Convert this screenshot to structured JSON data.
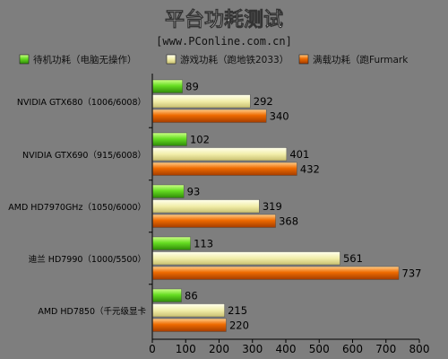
{
  "chart_data": {
    "type": "bar",
    "orientation": "horizontal",
    "title": "平台功耗测试",
    "subtitle": "[www.PConline.com.cn]",
    "categories": [
      "NVIDIA GTX680（1006/6008）",
      "NVIDIA GTX690（915/6008）",
      "AMD HD7970GHz（1050/6000）",
      "迪兰 HD7990（1000/5500）",
      "AMD HD7850（千元级显卡"
    ],
    "series": [
      {
        "name": "待机功耗（电脑无操作）",
        "values": [
          89,
          102,
          93,
          113,
          86
        ],
        "color": "#66dd22"
      },
      {
        "name": "游戏功耗（跑地铁2033）",
        "values": [
          292,
          401,
          319,
          561,
          215
        ],
        "color": "#f2eeaa"
      },
      {
        "name": "满载功耗（跑Furmark",
        "values": [
          340,
          432,
          368,
          737,
          220
        ],
        "color": "#ee6a00"
      }
    ],
    "xlim": [
      0,
      800
    ],
    "xticks": [
      0,
      100,
      200,
      300,
      400,
      500,
      600,
      700,
      800
    ],
    "grid": false,
    "legend_position": "top"
  },
  "colors": {
    "background": "#7e7e7e",
    "title_text": "#ffffff",
    "subtitle_text": "#111111",
    "axis": "#000000"
  }
}
